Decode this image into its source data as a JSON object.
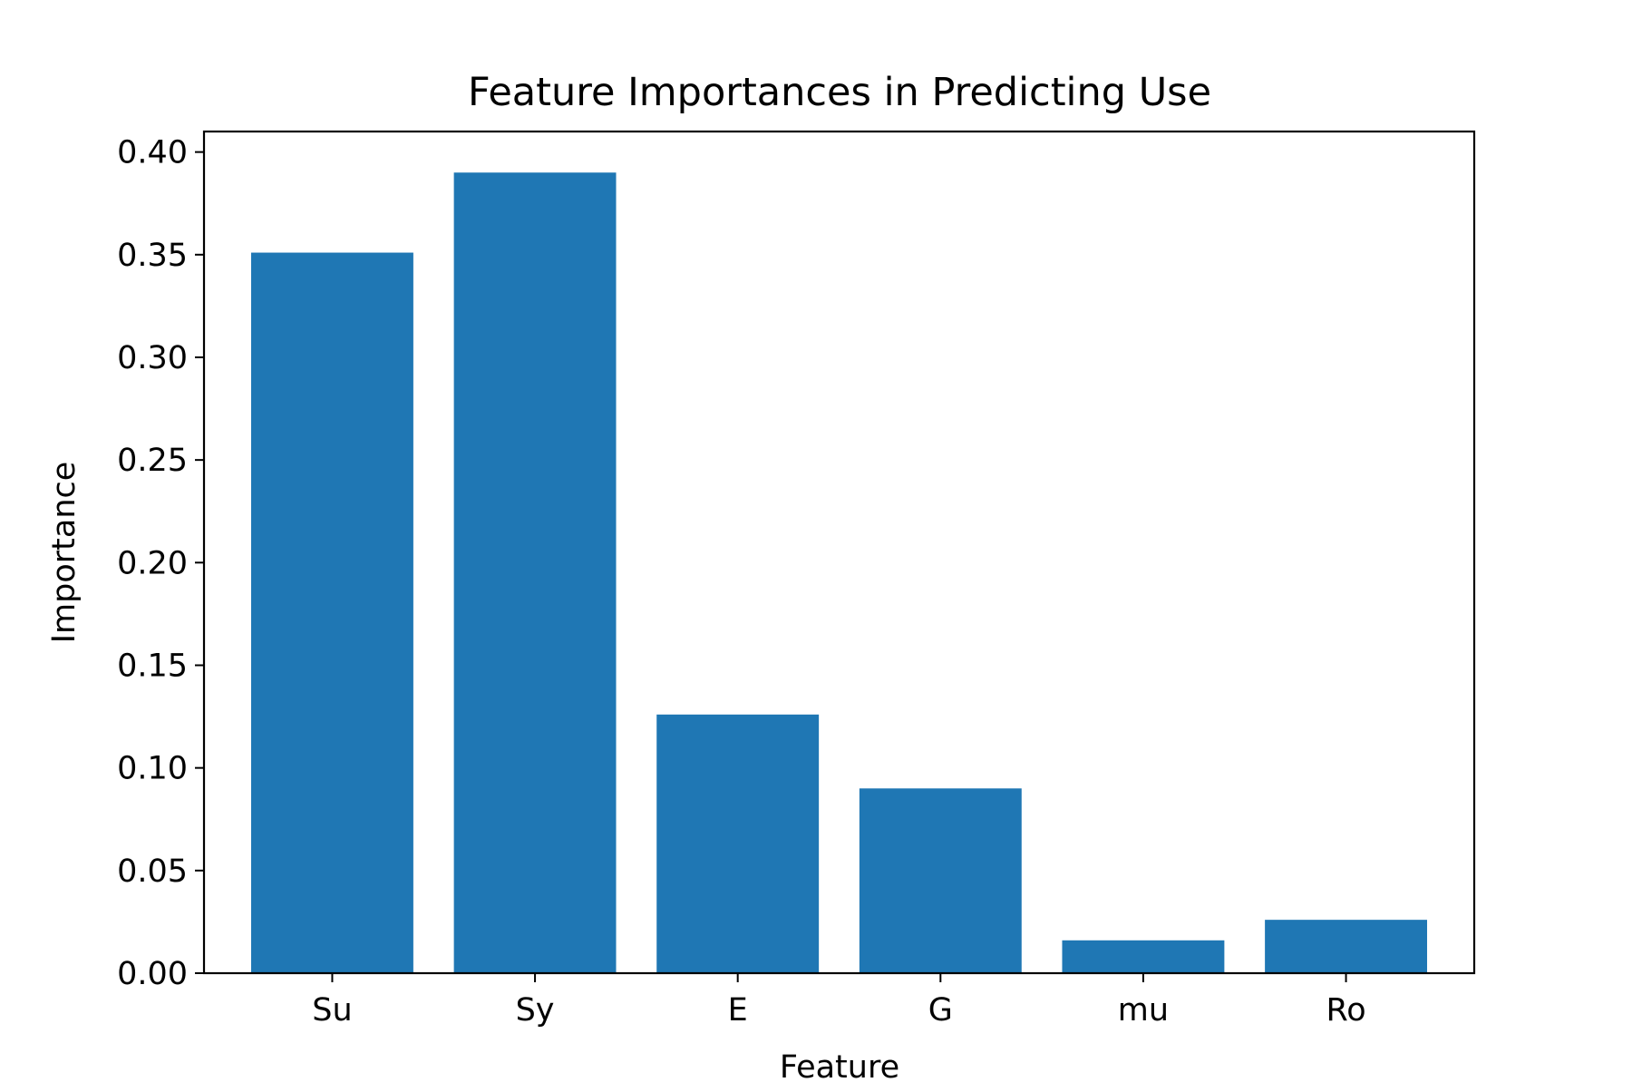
{
  "chart_data": {
    "type": "bar",
    "title": "Feature Importances in Predicting Use",
    "xlabel": "Feature",
    "ylabel": "Importance",
    "categories": [
      "Su",
      "Sy",
      "E",
      "G",
      "mu",
      "Ro"
    ],
    "values": [
      0.351,
      0.39,
      0.126,
      0.09,
      0.016,
      0.026
    ],
    "ylim": [
      0,
      0.41
    ],
    "yticks": [
      0.0,
      0.05,
      0.1,
      0.15,
      0.2,
      0.25,
      0.3,
      0.35,
      0.4
    ],
    "ytick_labels": [
      "0.00",
      "0.05",
      "0.10",
      "0.15",
      "0.20",
      "0.25",
      "0.30",
      "0.35",
      "0.40"
    ],
    "bar_color": "#1f77b4",
    "grid": false,
    "legend": "none"
  }
}
